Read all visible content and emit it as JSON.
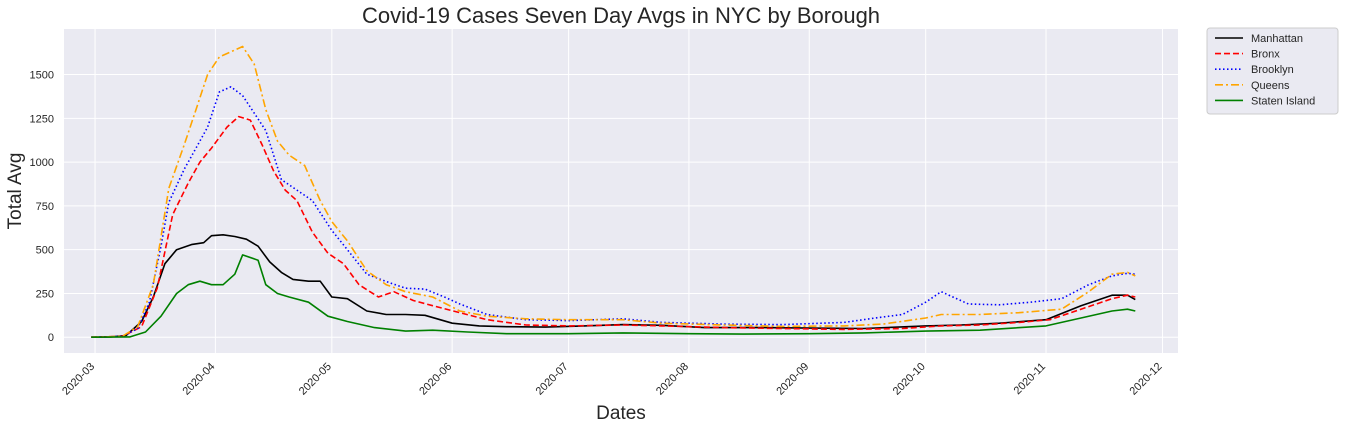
{
  "chart_data": {
    "type": "line",
    "title": "Covid-19 Cases Seven Day Avgs in NYC by Borough",
    "xlabel": "Dates",
    "ylabel": "Total Avg",
    "x_ticks": [
      "2020-03",
      "2020-04",
      "2020-05",
      "2020-06",
      "2020-07",
      "2020-08",
      "2020-09",
      "2020-10",
      "2020-11",
      "2020-12"
    ],
    "y_ticks": [
      0,
      250,
      500,
      750,
      1000,
      1250,
      1500
    ],
    "xlim": [
      "2020-02-22",
      "2020-12-05"
    ],
    "ylim": [
      -90,
      1760
    ],
    "grid": true,
    "background": "#EAEAF2",
    "legend_position": "outside-top-right",
    "series": [
      {
        "name": "Manhattan",
        "color": "#000000",
        "dash": "solid",
        "points": [
          [
            "2020-02-29",
            0
          ],
          [
            "2020-03-05",
            2
          ],
          [
            "2020-03-09",
            10
          ],
          [
            "2020-03-13",
            90
          ],
          [
            "2020-03-16",
            230
          ],
          [
            "2020-03-19",
            420
          ],
          [
            "2020-03-22",
            500
          ],
          [
            "2020-03-26",
            530
          ],
          [
            "2020-03-29",
            540
          ],
          [
            "2020-03-31",
            580
          ],
          [
            "2020-04-03",
            585
          ],
          [
            "2020-04-06",
            575
          ],
          [
            "2020-04-09",
            560
          ],
          [
            "2020-04-12",
            520
          ],
          [
            "2020-04-15",
            430
          ],
          [
            "2020-04-18",
            370
          ],
          [
            "2020-04-21",
            330
          ],
          [
            "2020-04-25",
            320
          ],
          [
            "2020-04-28",
            320
          ],
          [
            "2020-05-01",
            230
          ],
          [
            "2020-05-05",
            220
          ],
          [
            "2020-05-10",
            150
          ],
          [
            "2020-05-15",
            130
          ],
          [
            "2020-05-20",
            130
          ],
          [
            "2020-05-25",
            125
          ],
          [
            "2020-06-01",
            80
          ],
          [
            "2020-06-08",
            65
          ],
          [
            "2020-06-15",
            60
          ],
          [
            "2020-06-25",
            58
          ],
          [
            "2020-07-05",
            65
          ],
          [
            "2020-07-15",
            72
          ],
          [
            "2020-07-25",
            68
          ],
          [
            "2020-08-05",
            55
          ],
          [
            "2020-08-20",
            55
          ],
          [
            "2020-09-01",
            52
          ],
          [
            "2020-09-15",
            50
          ],
          [
            "2020-10-01",
            65
          ],
          [
            "2020-10-10",
            70
          ],
          [
            "2020-10-20",
            80
          ],
          [
            "2020-11-01",
            100
          ],
          [
            "2020-11-10",
            180
          ],
          [
            "2020-11-18",
            240
          ],
          [
            "2020-11-22",
            240
          ],
          [
            "2020-11-24",
            215
          ]
        ]
      },
      {
        "name": "Bronx",
        "color": "#FF0000",
        "dash": "dashed",
        "points": [
          [
            "2020-02-29",
            0
          ],
          [
            "2020-03-08",
            5
          ],
          [
            "2020-03-13",
            60
          ],
          [
            "2020-03-17",
            280
          ],
          [
            "2020-03-21",
            700
          ],
          [
            "2020-03-25",
            880
          ],
          [
            "2020-03-28",
            1000
          ],
          [
            "2020-03-31",
            1080
          ],
          [
            "2020-04-04",
            1200
          ],
          [
            "2020-04-07",
            1260
          ],
          [
            "2020-04-10",
            1240
          ],
          [
            "2020-04-13",
            1100
          ],
          [
            "2020-04-16",
            950
          ],
          [
            "2020-04-19",
            840
          ],
          [
            "2020-04-22",
            780
          ],
          [
            "2020-04-26",
            600
          ],
          [
            "2020-04-30",
            480
          ],
          [
            "2020-05-04",
            420
          ],
          [
            "2020-05-08",
            300
          ],
          [
            "2020-05-13",
            230
          ],
          [
            "2020-05-17",
            260
          ],
          [
            "2020-05-22",
            210
          ],
          [
            "2020-05-27",
            180
          ],
          [
            "2020-06-03",
            140
          ],
          [
            "2020-06-10",
            100
          ],
          [
            "2020-06-20",
            70
          ],
          [
            "2020-07-01",
            65
          ],
          [
            "2020-07-15",
            70
          ],
          [
            "2020-07-25",
            65
          ],
          [
            "2020-08-10",
            55
          ],
          [
            "2020-08-25",
            50
          ],
          [
            "2020-09-10",
            45
          ],
          [
            "2020-09-25",
            50
          ],
          [
            "2020-10-05",
            65
          ],
          [
            "2020-10-15",
            70
          ],
          [
            "2020-10-25",
            85
          ],
          [
            "2020-11-02",
            100
          ],
          [
            "2020-11-10",
            160
          ],
          [
            "2020-11-18",
            220
          ],
          [
            "2020-11-22",
            240
          ],
          [
            "2020-11-24",
            230
          ]
        ]
      },
      {
        "name": "Brooklyn",
        "color": "#0000FF",
        "dash": "dotted",
        "points": [
          [
            "2020-02-29",
            0
          ],
          [
            "2020-03-08",
            5
          ],
          [
            "2020-03-12",
            50
          ],
          [
            "2020-03-15",
            200
          ],
          [
            "2020-03-18",
            520
          ],
          [
            "2020-03-20",
            770
          ],
          [
            "2020-03-24",
            960
          ],
          [
            "2020-03-27",
            1080
          ],
          [
            "2020-03-30",
            1200
          ],
          [
            "2020-04-02",
            1400
          ],
          [
            "2020-04-05",
            1430
          ],
          [
            "2020-04-08",
            1380
          ],
          [
            "2020-04-11",
            1280
          ],
          [
            "2020-04-14",
            1180
          ],
          [
            "2020-04-18",
            900
          ],
          [
            "2020-04-22",
            840
          ],
          [
            "2020-04-26",
            780
          ],
          [
            "2020-05-01",
            610
          ],
          [
            "2020-05-05",
            500
          ],
          [
            "2020-05-10",
            360
          ],
          [
            "2020-05-16",
            310
          ],
          [
            "2020-05-20",
            280
          ],
          [
            "2020-05-25",
            275
          ],
          [
            "2020-05-30",
            230
          ],
          [
            "2020-06-03",
            190
          ],
          [
            "2020-06-10",
            130
          ],
          [
            "2020-06-20",
            100
          ],
          [
            "2020-07-01",
            95
          ],
          [
            "2020-07-15",
            105
          ],
          [
            "2020-07-25",
            85
          ],
          [
            "2020-08-10",
            75
          ],
          [
            "2020-08-25",
            72
          ],
          [
            "2020-09-10",
            85
          ],
          [
            "2020-09-18",
            110
          ],
          [
            "2020-09-25",
            130
          ],
          [
            "2020-10-01",
            200
          ],
          [
            "2020-10-05",
            260
          ],
          [
            "2020-10-12",
            190
          ],
          [
            "2020-10-20",
            185
          ],
          [
            "2020-10-28",
            200
          ],
          [
            "2020-11-05",
            220
          ],
          [
            "2020-11-12",
            300
          ],
          [
            "2020-11-18",
            350
          ],
          [
            "2020-11-22",
            365
          ],
          [
            "2020-11-24",
            360
          ]
        ]
      },
      {
        "name": "Queens",
        "color": "#FFA500",
        "dash": "dashdot",
        "points": [
          [
            "2020-02-29",
            0
          ],
          [
            "2020-03-08",
            5
          ],
          [
            "2020-03-12",
            60
          ],
          [
            "2020-03-16",
            300
          ],
          [
            "2020-03-20",
            850
          ],
          [
            "2020-03-24",
            1100
          ],
          [
            "2020-03-27",
            1300
          ],
          [
            "2020-03-30",
            1500
          ],
          [
            "2020-04-02",
            1600
          ],
          [
            "2020-04-05",
            1630
          ],
          [
            "2020-04-08",
            1660
          ],
          [
            "2020-04-11",
            1560
          ],
          [
            "2020-04-14",
            1300
          ],
          [
            "2020-04-17",
            1120
          ],
          [
            "2020-04-20",
            1040
          ],
          [
            "2020-04-24",
            980
          ],
          [
            "2020-04-28",
            780
          ],
          [
            "2020-05-01",
            660
          ],
          [
            "2020-05-05",
            550
          ],
          [
            "2020-05-10",
            380
          ],
          [
            "2020-05-15",
            300
          ],
          [
            "2020-05-20",
            260
          ],
          [
            "2020-05-27",
            230
          ],
          [
            "2020-06-03",
            150
          ],
          [
            "2020-06-10",
            120
          ],
          [
            "2020-06-20",
            105
          ],
          [
            "2020-07-01",
            100
          ],
          [
            "2020-07-15",
            100
          ],
          [
            "2020-07-25",
            80
          ],
          [
            "2020-08-10",
            70
          ],
          [
            "2020-08-25",
            62
          ],
          [
            "2020-09-10",
            65
          ],
          [
            "2020-09-20",
            75
          ],
          [
            "2020-10-01",
            110
          ],
          [
            "2020-10-05",
            130
          ],
          [
            "2020-10-15",
            130
          ],
          [
            "2020-10-25",
            140
          ],
          [
            "2020-11-05",
            160
          ],
          [
            "2020-11-12",
            260
          ],
          [
            "2020-11-18",
            360
          ],
          [
            "2020-11-22",
            370
          ],
          [
            "2020-11-24",
            350
          ]
        ]
      },
      {
        "name": "Staten Island",
        "color": "#008000",
        "dash": "solid",
        "points": [
          [
            "2020-02-29",
            0
          ],
          [
            "2020-03-10",
            2
          ],
          [
            "2020-03-14",
            30
          ],
          [
            "2020-03-18",
            120
          ],
          [
            "2020-03-22",
            250
          ],
          [
            "2020-03-25",
            300
          ],
          [
            "2020-03-28",
            320
          ],
          [
            "2020-03-31",
            300
          ],
          [
            "2020-04-03",
            300
          ],
          [
            "2020-04-06",
            360
          ],
          [
            "2020-04-08",
            470
          ],
          [
            "2020-04-12",
            440
          ],
          [
            "2020-04-14",
            300
          ],
          [
            "2020-04-17",
            250
          ],
          [
            "2020-04-20",
            230
          ],
          [
            "2020-04-25",
            200
          ],
          [
            "2020-04-30",
            120
          ],
          [
            "2020-05-05",
            90
          ],
          [
            "2020-05-12",
            55
          ],
          [
            "2020-05-20",
            35
          ],
          [
            "2020-05-27",
            40
          ],
          [
            "2020-06-05",
            30
          ],
          [
            "2020-06-15",
            20
          ],
          [
            "2020-07-01",
            20
          ],
          [
            "2020-07-15",
            25
          ],
          [
            "2020-08-01",
            20
          ],
          [
            "2020-08-15",
            18
          ],
          [
            "2020-09-01",
            20
          ],
          [
            "2020-09-15",
            25
          ],
          [
            "2020-10-01",
            35
          ],
          [
            "2020-10-15",
            40
          ],
          [
            "2020-11-01",
            65
          ],
          [
            "2020-11-10",
            110
          ],
          [
            "2020-11-18",
            150
          ],
          [
            "2020-11-22",
            160
          ],
          [
            "2020-11-24",
            150
          ]
        ]
      }
    ]
  }
}
